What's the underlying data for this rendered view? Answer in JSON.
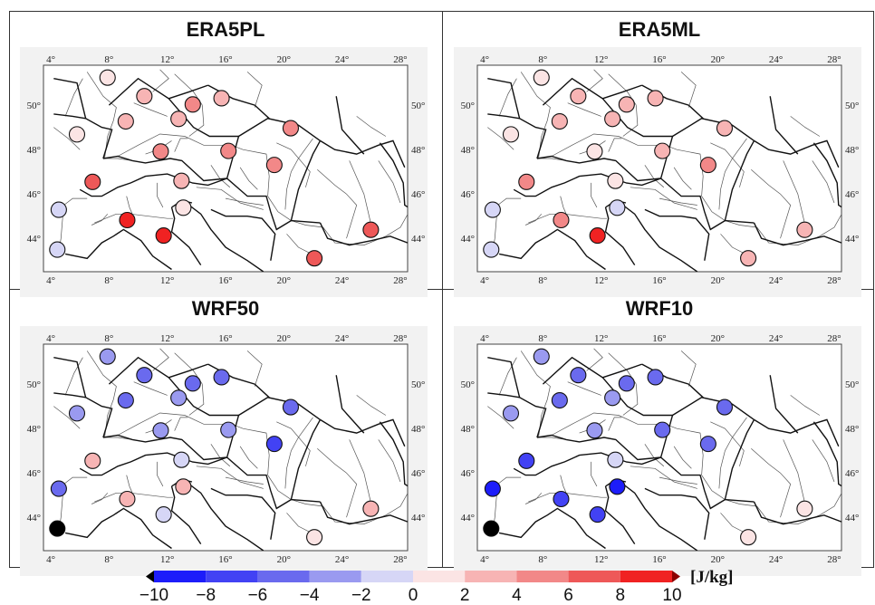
{
  "panels": [
    {
      "title": "ERA5PL",
      "values": [
        1.5,
        3.5,
        4.0,
        1.5,
        3.5,
        3.5,
        2.0,
        5.0,
        4.0,
        4.5,
        3.0,
        4.0,
        6.5,
        9.0,
        8.5,
        1.5,
        6.5,
        6.0,
        -1.5,
        -1.5
      ]
    },
    {
      "title": "ERA5ML",
      "values": [
        1.5,
        3.5,
        3.5,
        1.5,
        3.0,
        3.5,
        2.5,
        3.5,
        1.5,
        3.5,
        1.5,
        5.0,
        5.0,
        5.5,
        8.5,
        -1.5,
        3.5,
        3.5,
        -1.5,
        -1.5
      ]
    },
    {
      "title": "WRF50",
      "values": [
        -4.0,
        -4.5,
        -4.5,
        -3.5,
        -4.5,
        -3.5,
        -5.0,
        -4.5,
        -3.5,
        -3.0,
        -1.5,
        -6.5,
        3.5,
        3.0,
        -1.5,
        3.5,
        2.0,
        1.5,
        -5.5,
        -11.0
      ]
    },
    {
      "title": "WRF10",
      "values": [
        -4.0,
        -4.5,
        -4.5,
        -3.5,
        -5.0,
        -4.0,
        -5.0,
        -4.5,
        -4.0,
        -4.5,
        -1.5,
        -4.5,
        -6.5,
        -7.5,
        -6.5,
        -9.0,
        1.5,
        1.5,
        -8.5,
        -11.0
      ]
    }
  ],
  "map": {
    "lon_ticks": [
      "4°",
      "8°",
      "12°",
      "16°",
      "20°",
      "24°",
      "28°"
    ],
    "lat_ticks": [
      "44°",
      "46°",
      "48°",
      "50°"
    ]
  },
  "colorbar": {
    "ticks": [
      "−10",
      "−8",
      "−6",
      "−4",
      "−2",
      "0",
      "2",
      "4",
      "6",
      "8",
      "10"
    ],
    "unit": "[J/kg]",
    "colors": [
      "#1d1dfa",
      "#4242f4",
      "#6a6aee",
      "#9a9af0",
      "#d6d6f6",
      "#fbe4e4",
      "#f7b4b4",
      "#f28888",
      "#ee5858",
      "#f02222"
    ],
    "under_color": "#000000",
    "over_color": "#8b0000"
  },
  "colors": {
    "river": "#555555",
    "border": "#111111",
    "map_bg": "#f2f2f2"
  }
}
